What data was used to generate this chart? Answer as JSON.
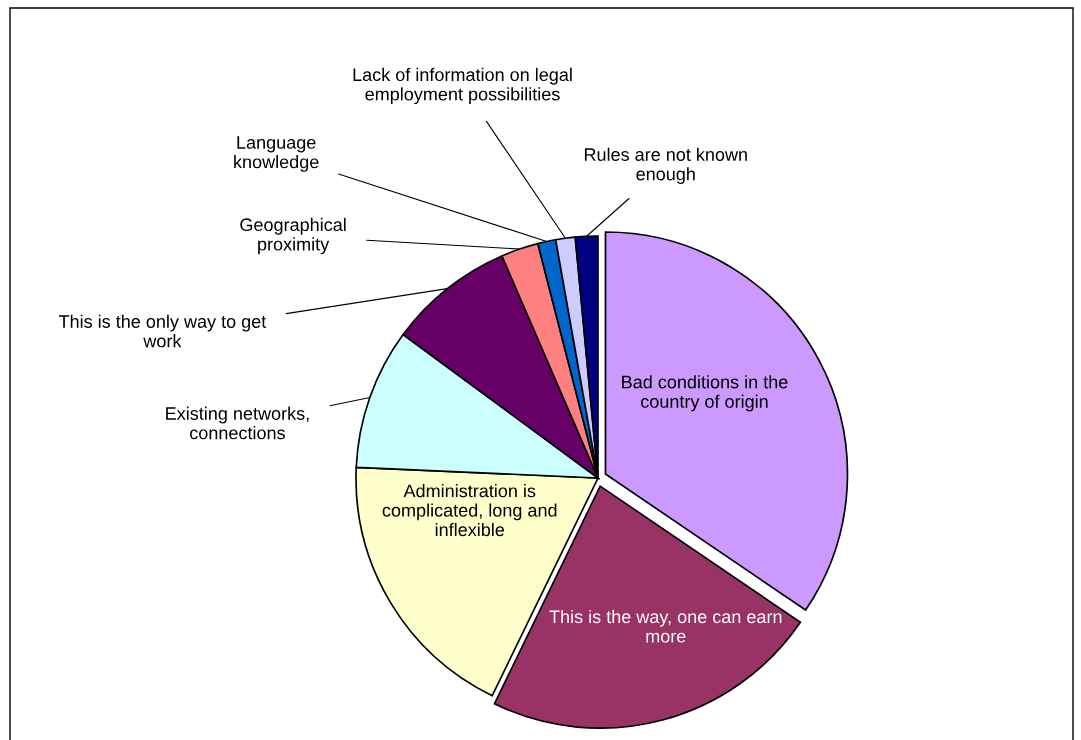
{
  "chart_data": {
    "type": "pie",
    "categories": [
      "Bad conditions in the country of origin",
      "This is the way, one can earn more",
      "Administration is complicated, long and inflexible",
      "Existing networks, connections",
      "This is the only way to get work",
      "Geographical proximity",
      "Language knowledge",
      "Lack of information on legal employment possibilities",
      "Rules are not known enough"
    ],
    "values": [
      34.5,
      22.7,
      18.5,
      9.4,
      8.4,
      2.5,
      1.2,
      1.3,
      1.5
    ],
    "colors": [
      "#cc99ff",
      "#993366",
      "#ffffcc",
      "#ccffff",
      "#660066",
      "#ff8080",
      "#0066cc",
      "#ccccff",
      "#000080"
    ]
  }
}
